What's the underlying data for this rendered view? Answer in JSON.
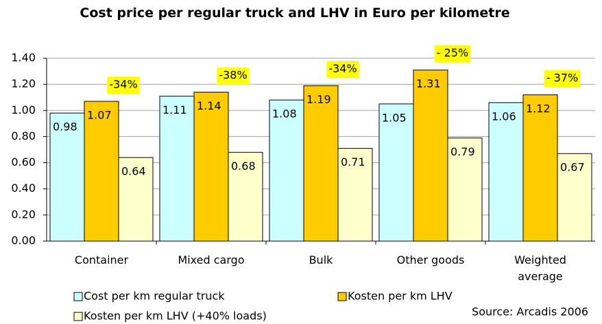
{
  "chart_data": {
    "type": "bar",
    "title": "Cost price per regular truck and LHV in Euro per kilometre",
    "categories": [
      "Container",
      "Mixed cargo",
      "Bulk",
      "Other goods",
      "Weighted average"
    ],
    "series": [
      {
        "name": "Cost per km regular truck",
        "color": "#ccffff",
        "values": [
          0.98,
          1.11,
          1.08,
          1.05,
          1.06
        ]
      },
      {
        "name": "Kosten per km LHV",
        "color": "#ffcc00",
        "values": [
          1.07,
          1.14,
          1.19,
          1.31,
          1.12
        ]
      },
      {
        "name": "Kosten per km LHV (+40% loads)",
        "color": "#ffffcc",
        "values": [
          0.64,
          0.68,
          0.71,
          0.79,
          0.67
        ]
      }
    ],
    "annotations": [
      "-34%",
      "-38%",
      "-34%",
      "- 25%",
      "- 37%"
    ],
    "source": "Source: Arcadis 2006",
    "ylim": [
      0,
      1.4
    ],
    "yticks": [
      {
        "value": 0,
        "label": "0.00"
      },
      {
        "value": 0.2,
        "label": "0.20"
      },
      {
        "value": 0.4,
        "label": "0.40"
      },
      {
        "value": 0.6,
        "label": "0.60"
      },
      {
        "value": 0.8,
        "label": "0.80"
      },
      {
        "value": 1,
        "label": "1.00"
      },
      {
        "value": 1.2,
        "label": "1.20"
      },
      {
        "value": 1.4,
        "label": "1.40"
      }
    ],
    "grid": true
  }
}
